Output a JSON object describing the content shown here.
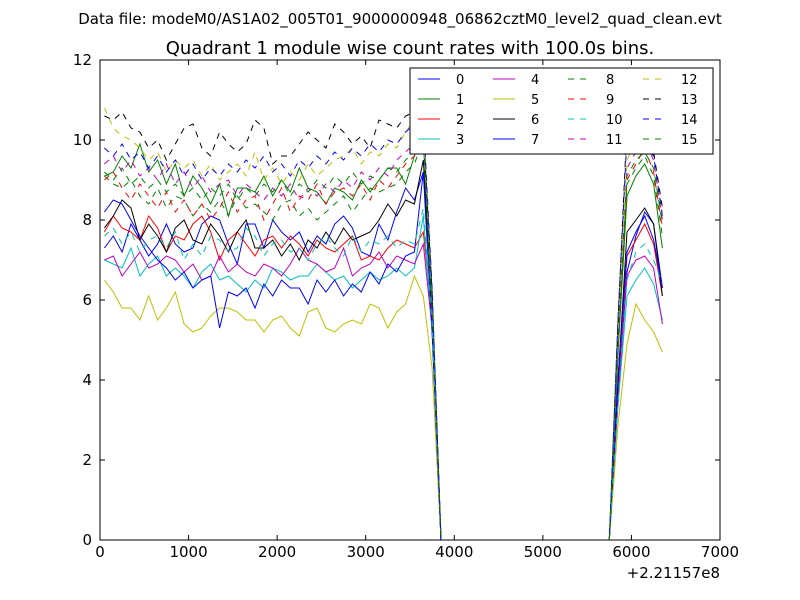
{
  "figure": {
    "suptitle": "Data file: modeM0/AS1A02_005T01_9000000948_06862cztM0_level2_quad_clean.evt",
    "x_offset_label": "+2.21157e8"
  },
  "chart_data": {
    "type": "line",
    "title": "Quadrant 1 module wise count rates with 100.0s bins.",
    "xlabel": "",
    "ylabel": "",
    "xlim": [
      0,
      7000
    ],
    "ylim": [
      0,
      12
    ],
    "x_ticks": [
      0,
      1000,
      2000,
      3000,
      4000,
      5000,
      6000,
      7000
    ],
    "y_ticks": [
      0,
      2,
      4,
      6,
      8,
      10,
      12
    ],
    "grid": false,
    "legend_position": "top-right",
    "legend_columns": 4,
    "x": [
      50,
      150,
      250,
      350,
      450,
      550,
      650,
      750,
      850,
      950,
      1050,
      1150,
      1250,
      1350,
      1450,
      1550,
      1650,
      1750,
      1850,
      1950,
      2050,
      2150,
      2250,
      2350,
      2450,
      2550,
      2650,
      2750,
      2850,
      2950,
      3050,
      3150,
      3250,
      3350,
      3450,
      3550,
      3650,
      3750,
      3850,
      5750,
      5850,
      5950,
      6050,
      6150,
      6250,
      6350
    ],
    "series": [
      {
        "name": "0",
        "color": "#0000ff",
        "dash": "solid",
        "values": [
          7.3,
          7.6,
          7.2,
          7.9,
          7.5,
          7.1,
          7.4,
          7.9,
          7.4,
          7.2,
          7.3,
          7.9,
          8.1,
          8.0,
          7.4,
          6.9,
          7.9,
          7.9,
          7.3,
          8.0,
          7.7,
          7.5,
          7.7,
          7.2,
          7.6,
          7.4,
          7.9,
          8.1,
          7.8,
          7.2,
          7.1,
          7.9,
          7.5,
          8.2,
          8.8,
          8.5,
          9.2,
          6.0,
          0.0,
          0.0,
          3.7,
          6.7,
          7.6,
          8.2,
          7.9,
          6.3
        ]
      },
      {
        "name": "1",
        "color": "#008000",
        "dash": "solid",
        "values": [
          9.1,
          9.2,
          9.6,
          9.3,
          9.9,
          9.2,
          9.5,
          8.9,
          9.4,
          8.6,
          9.1,
          8.8,
          8.4,
          8.9,
          8.1,
          8.8,
          8.8,
          8.7,
          9.1,
          8.6,
          9.0,
          8.7,
          9.3,
          8.8,
          8.7,
          8.4,
          8.8,
          8.7,
          8.5,
          9.0,
          8.7,
          9.0,
          9.3,
          9.3,
          8.9,
          9.6,
          10.4,
          5.5,
          0.0,
          0.0,
          4.7,
          8.6,
          9.1,
          9.4,
          8.9,
          7.3
        ]
      },
      {
        "name": "2",
        "color": "#ff0000",
        "dash": "solid",
        "values": [
          7.7,
          8.1,
          7.8,
          7.7,
          7.5,
          8.1,
          7.8,
          7.2,
          7.6,
          7.5,
          7.9,
          8.1,
          7.7,
          7.0,
          7.5,
          7.7,
          7.4,
          7.1,
          7.5,
          7.6,
          7.3,
          7.6,
          7.4,
          7.1,
          7.5,
          7.3,
          7.2,
          7.4,
          7.6,
          7.0,
          7.1,
          7.0,
          7.3,
          7.5,
          7.4,
          7.3,
          7.7,
          5.6,
          0.0,
          0.0,
          3.9,
          7.1,
          7.5,
          7.9,
          7.4,
          6.1
        ]
      },
      {
        "name": "3",
        "color": "#00bfbf",
        "dash": "solid",
        "values": [
          7.0,
          6.9,
          6.8,
          7.3,
          6.6,
          6.9,
          7.1,
          6.6,
          6.8,
          6.6,
          6.3,
          6.7,
          6.9,
          6.5,
          6.6,
          6.4,
          6.2,
          6.5,
          6.3,
          6.8,
          6.7,
          6.5,
          6.6,
          6.6,
          6.9,
          6.7,
          6.5,
          6.6,
          6.3,
          6.5,
          6.7,
          6.5,
          6.6,
          6.8,
          6.6,
          6.8,
          8.1,
          5.2,
          0.0,
          0.0,
          3.4,
          6.1,
          6.5,
          6.8,
          6.4,
          5.5
        ]
      },
      {
        "name": "4",
        "color": "#bf00bf",
        "dash": "solid",
        "values": [
          7.0,
          7.1,
          6.6,
          6.9,
          7.2,
          6.8,
          6.9,
          7.1,
          7.0,
          6.7,
          6.9,
          6.5,
          6.6,
          7.1,
          6.7,
          6.9,
          6.7,
          6.6,
          6.9,
          6.8,
          6.6,
          6.9,
          7.3,
          7.0,
          6.9,
          6.7,
          6.8,
          7.3,
          6.6,
          6.8,
          6.9,
          7.2,
          6.8,
          7.1,
          7.0,
          6.9,
          7.4,
          5.3,
          0.0,
          0.0,
          3.6,
          6.6,
          7.0,
          7.1,
          6.8,
          5.4
        ]
      },
      {
        "name": "5",
        "color": "#bfbf00",
        "dash": "solid",
        "values": [
          6.5,
          6.2,
          5.8,
          5.8,
          5.5,
          6.1,
          5.5,
          5.8,
          6.2,
          5.4,
          5.2,
          5.3,
          5.6,
          5.8,
          5.8,
          5.7,
          5.5,
          5.5,
          5.2,
          5.5,
          5.6,
          5.3,
          5.1,
          5.7,
          5.8,
          5.3,
          5.2,
          5.4,
          5.5,
          5.4,
          5.9,
          5.8,
          5.3,
          5.7,
          5.9,
          6.6,
          6.1,
          4.3,
          0.0,
          0.0,
          2.9,
          4.9,
          5.9,
          5.5,
          5.2,
          4.7
        ]
      },
      {
        "name": "6",
        "color": "#000000",
        "dash": "solid",
        "values": [
          7.8,
          8.1,
          8.5,
          8.3,
          7.5,
          7.9,
          7.6,
          7.2,
          7.8,
          8.0,
          7.5,
          7.4,
          7.9,
          7.6,
          7.2,
          7.7,
          8.0,
          7.3,
          7.3,
          7.5,
          7.1,
          7.4,
          7.0,
          7.5,
          7.3,
          7.7,
          7.4,
          7.8,
          7.5,
          7.6,
          7.7,
          8.0,
          8.4,
          8.1,
          8.5,
          8.4,
          9.5,
          5.8,
          0.0,
          0.0,
          4.0,
          7.7,
          8.0,
          8.3,
          7.9,
          6.1
        ]
      },
      {
        "name": "7",
        "color": "#0000ff",
        "dash": "solid",
        "values": [
          8.2,
          8.5,
          8.4,
          8.0,
          7.6,
          7.3,
          7.0,
          6.8,
          6.5,
          6.7,
          6.3,
          6.5,
          6.6,
          5.3,
          6.2,
          6.1,
          6.3,
          5.8,
          6.4,
          6.1,
          6.5,
          6.3,
          6.3,
          5.9,
          6.5,
          6.2,
          6.5,
          6.1,
          6.4,
          6.2,
          6.7,
          6.4,
          6.9,
          6.7,
          7.1,
          7.2,
          9.2,
          5.2,
          0.0,
          0.0,
          4.1,
          7.2,
          7.7,
          8.1,
          7.5,
          6.3
        ]
      },
      {
        "name": "8",
        "color": "#008000",
        "dash": "dashed",
        "values": [
          9.1,
          8.9,
          8.8,
          9.0,
          8.6,
          8.4,
          8.8,
          8.3,
          8.6,
          8.5,
          8.1,
          8.4,
          8.2,
          8.5,
          8.1,
          8.6,
          8.3,
          8.4,
          8.2,
          8.0,
          8.4,
          8.5,
          8.1,
          8.3,
          8.0,
          8.2,
          8.4,
          8.6,
          8.2,
          8.5,
          8.8,
          8.7,
          8.8,
          8.9,
          9.2,
          9.4,
          10.0,
          5.7,
          0.0,
          0.0,
          4.8,
          8.9,
          9.3,
          9.6,
          9.1,
          7.6
        ]
      },
      {
        "name": "9",
        "color": "#ff0000",
        "dash": "dashed",
        "values": [
          9.0,
          9.2,
          8.8,
          8.5,
          8.9,
          8.6,
          8.3,
          8.7,
          8.2,
          8.5,
          8.1,
          8.4,
          8.0,
          8.3,
          8.7,
          8.2,
          8.5,
          8.6,
          8.0,
          8.4,
          8.8,
          8.2,
          8.6,
          8.5,
          8.9,
          8.4,
          8.7,
          8.8,
          8.6,
          8.9,
          8.5,
          9.0,
          8.8,
          9.1,
          9.4,
          9.6,
          10.1,
          5.9,
          0.0,
          0.0,
          4.9,
          9.0,
          9.4,
          9.8,
          9.2,
          7.8
        ]
      },
      {
        "name": "10",
        "color": "#00bfbf",
        "dash": "dashed",
        "values": [
          7.6,
          7.8,
          7.4,
          7.7,
          7.2,
          7.5,
          7.6,
          7.3,
          7.7,
          7.0,
          7.4,
          7.1,
          7.6,
          7.5,
          7.2,
          7.3,
          7.8,
          7.6,
          7.1,
          7.4,
          7.5,
          7.2,
          7.3,
          7.0,
          7.4,
          7.6,
          7.3,
          7.1,
          7.6,
          7.2,
          7.5,
          7.4,
          7.6,
          7.3,
          7.5,
          7.4,
          8.3,
          5.4,
          0.0,
          0.0,
          3.5,
          6.5,
          7.2,
          7.4,
          7.0,
          6.4
        ]
      },
      {
        "name": "11",
        "color": "#bf00bf",
        "dash": "dashed",
        "values": [
          9.4,
          9.6,
          9.2,
          9.5,
          9.1,
          9.3,
          9.0,
          9.4,
          8.9,
          9.2,
          8.8,
          9.1,
          8.7,
          8.9,
          9.0,
          8.6,
          8.9,
          8.7,
          8.5,
          8.8,
          8.6,
          8.9,
          8.5,
          8.8,
          8.6,
          8.9,
          8.7,
          9.0,
          8.8,
          9.2,
          9.0,
          9.3,
          9.1,
          9.5,
          9.7,
          9.9,
          10.3,
          6.0,
          0.0,
          0.0,
          5.1,
          9.3,
          9.7,
          10.0,
          9.5,
          8.0
        ]
      },
      {
        "name": "12",
        "color": "#bfbf00",
        "dash": "dashed",
        "values": [
          10.8,
          10.3,
          10.1,
          10.0,
          9.8,
          9.5,
          9.7,
          9.2,
          9.5,
          9.3,
          9.5,
          9.1,
          9.4,
          9.0,
          9.2,
          9.4,
          9.1,
          9.7,
          9.0,
          9.3,
          8.9,
          9.2,
          9.0,
          9.4,
          9.1,
          9.3,
          9.5,
          9.6,
          9.8,
          9.4,
          9.7,
          9.6,
          9.9,
          9.8,
          10.2,
          10.5,
          10.2,
          6.1,
          0.0,
          0.0,
          5.3,
          9.5,
          10.0,
          10.1,
          9.6,
          8.2
        ]
      },
      {
        "name": "13",
        "color": "#000000",
        "dash": "dashed",
        "values": [
          10.6,
          10.5,
          10.7,
          10.3,
          10.2,
          9.8,
          10.0,
          9.5,
          9.9,
          10.3,
          10.4,
          9.8,
          9.6,
          10.2,
          9.9,
          9.7,
          9.9,
          10.5,
          10.3,
          9.4,
          9.6,
          9.6,
          9.9,
          10.2,
          10.0,
          9.8,
          10.4,
          10.2,
          9.9,
          10.1,
          9.8,
          10.5,
          10.4,
          10.3,
          10.6,
          10.7,
          10.3,
          6.2,
          0.0,
          0.0,
          5.5,
          10.4,
          10.3,
          10.1,
          9.7,
          8.3
        ]
      },
      {
        "name": "14",
        "color": "#0000ff",
        "dash": "dashed",
        "values": [
          9.8,
          9.6,
          9.9,
          9.5,
          9.7,
          9.3,
          9.6,
          9.2,
          9.5,
          9.1,
          9.4,
          9.0,
          9.3,
          9.1,
          9.4,
          9.2,
          9.5,
          9.3,
          9.6,
          9.2,
          9.4,
          9.1,
          9.5,
          9.3,
          9.6,
          9.4,
          9.7,
          9.5,
          9.8,
          9.6,
          9.9,
          9.7,
          10.0,
          9.9,
          10.2,
          10.4,
          10.6,
          6.3,
          0.0,
          0.0,
          5.6,
          10.1,
          10.2,
          10.0,
          9.6,
          8.1
        ]
      },
      {
        "name": "15",
        "color": "#008000",
        "dash": "dashed",
        "values": [
          9.2,
          9.0,
          9.3,
          8.9,
          9.1,
          8.8,
          9.0,
          8.7,
          8.9,
          8.6,
          8.8,
          8.5,
          8.8,
          8.6,
          8.9,
          8.5,
          8.8,
          8.6,
          8.9,
          8.7,
          9.0,
          8.6,
          8.9,
          8.7,
          9.0,
          8.8,
          9.1,
          8.9,
          9.2,
          8.9,
          9.1,
          9.0,
          9.3,
          9.2,
          9.5,
          9.7,
          10.0,
          5.9,
          0.0,
          0.0,
          5.0,
          9.1,
          9.5,
          9.7,
          9.3,
          7.9
        ]
      }
    ]
  }
}
